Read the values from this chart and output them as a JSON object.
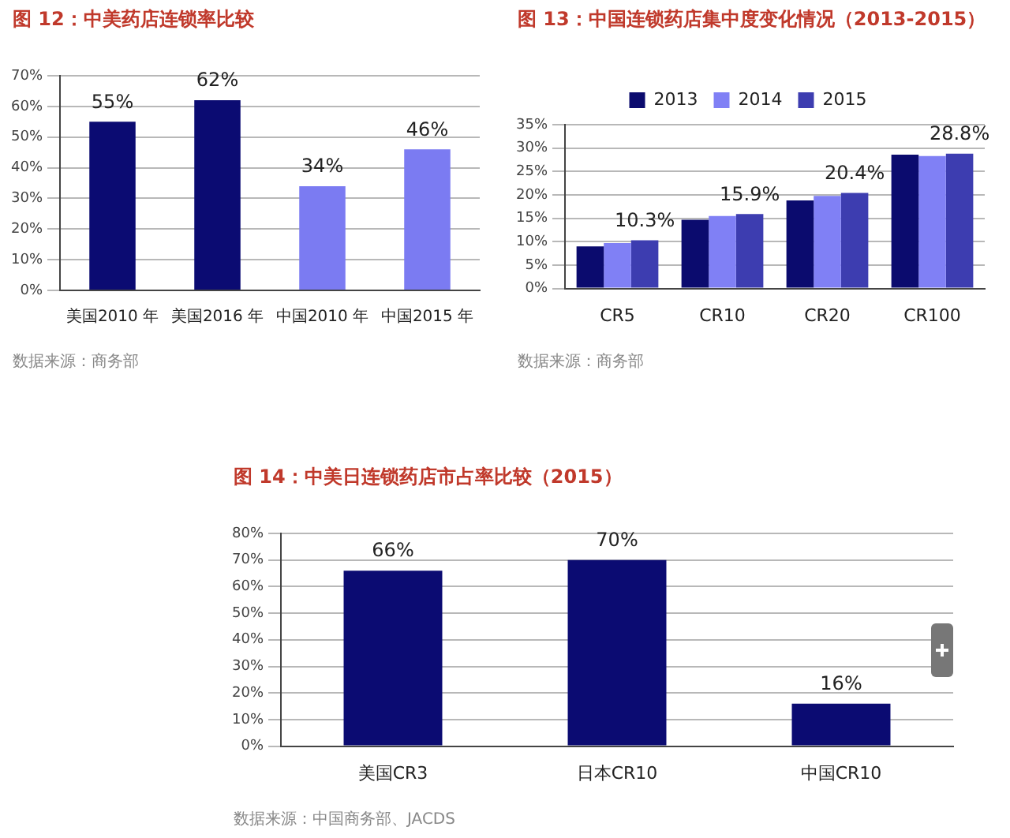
{
  "chart_data": [
    {
      "type": "bar",
      "title": "图 12：中美药店连锁率比较",
      "categories": [
        "美国2010 年",
        "美国2016 年",
        "中国2010 年",
        "中国2015 年"
      ],
      "values": [
        55,
        62,
        34,
        46
      ],
      "colors": [
        "#0b0b72",
        "#0b0b72",
        "#7b7bf2",
        "#7b7bf2"
      ],
      "value_labels": [
        "55%",
        "62%",
        "34%",
        "46%"
      ],
      "ylim": [
        0,
        70
      ],
      "yticks": [
        {
          "value": 0,
          "label": "0%"
        },
        {
          "value": 10,
          "label": "10%"
        },
        {
          "value": 20,
          "label": "20%"
        },
        {
          "value": 30,
          "label": "30%"
        },
        {
          "value": 40,
          "label": "40%"
        },
        {
          "value": 50,
          "label": "50%"
        },
        {
          "value": 60,
          "label": "60%"
        },
        {
          "value": 70,
          "label": "70%"
        }
      ],
      "grid": "y",
      "annotations": [
        "数据来源：商务部"
      ]
    },
    {
      "type": "bar",
      "title": "图 13：中国连锁药店集中度变化情况（2013-2015）",
      "categories": [
        "CR5",
        "CR10",
        "CR20",
        "CR100"
      ],
      "series": [
        {
          "name": "2013",
          "color": "#0b0b6e",
          "values": [
            9,
            14.7,
            18.8,
            28.6
          ]
        },
        {
          "name": "2014",
          "color": "#8080f5",
          "values": [
            9.7,
            15.5,
            19.8,
            28.3
          ]
        },
        {
          "name": "2015",
          "color": "#3d3db0",
          "values": [
            10.3,
            15.9,
            20.4,
            28.8
          ],
          "value_labels": [
            "10.3%",
            "15.9%",
            "20.4%",
            "28.8%"
          ]
        }
      ],
      "ylim": [
        0,
        35
      ],
      "yticks": [
        {
          "value": 0,
          "label": "0%"
        },
        {
          "value": 5,
          "label": "5%"
        },
        {
          "value": 10,
          "label": "10%"
        },
        {
          "value": 15,
          "label": "15%"
        },
        {
          "value": 20,
          "label": "20%"
        },
        {
          "value": 25,
          "label": "25%"
        },
        {
          "value": 30,
          "label": "30%"
        },
        {
          "value": 35,
          "label": "35%"
        }
      ],
      "grid": "y",
      "legend": "top",
      "annotations": [
        "数据来源：商务部"
      ]
    },
    {
      "type": "bar",
      "title": "图 14：中美日连锁药店市占率比较（2015）",
      "categories": [
        "美国CR3",
        "日本CR10",
        "中国CR10"
      ],
      "values": [
        66,
        70,
        16
      ],
      "color": "#0b0b72",
      "value_labels": [
        "66%",
        "70%",
        "16%"
      ],
      "ylim": [
        0,
        80
      ],
      "yticks": [
        {
          "value": 0,
          "label": "0%"
        },
        {
          "value": 10,
          "label": "10%"
        },
        {
          "value": 20,
          "label": "20%"
        },
        {
          "value": 30,
          "label": "30%"
        },
        {
          "value": 40,
          "label": "40%"
        },
        {
          "value": 50,
          "label": "50%"
        },
        {
          "value": 60,
          "label": "60%"
        },
        {
          "value": 70,
          "label": "70%"
        },
        {
          "value": 80,
          "label": "80%"
        }
      ],
      "grid": "y",
      "annotations": [
        "数据来源：中国商务部、JACDS"
      ]
    }
  ]
}
